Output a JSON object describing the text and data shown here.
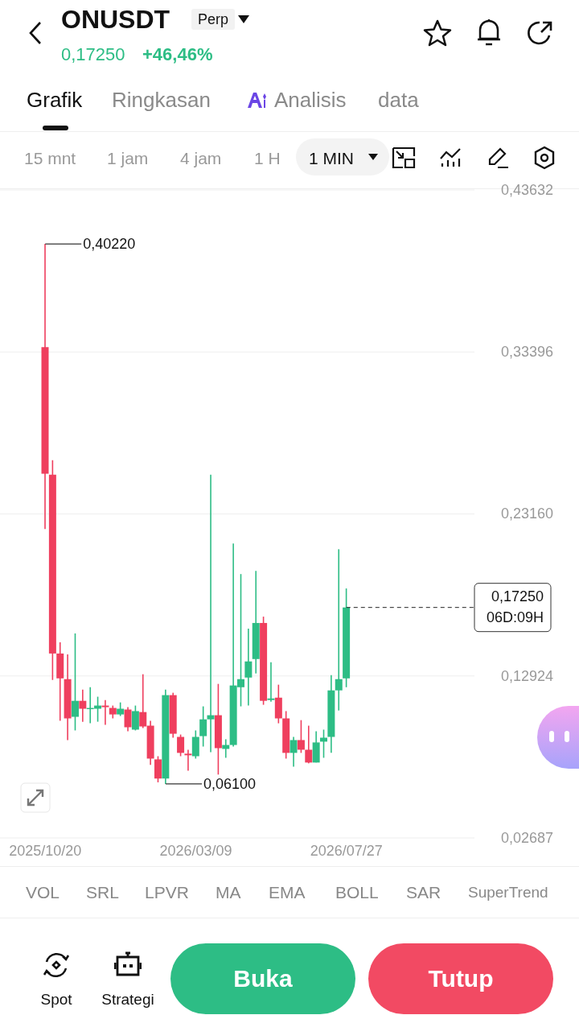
{
  "chart_data": {
    "type": "candlestick",
    "title": "ONUSDT",
    "x": [
      "2025-10-20",
      "2025-10-27",
      "2025-11-03",
      "2025-11-10",
      "2025-11-17",
      "2025-11-24",
      "2025-12-01",
      "2025-12-08",
      "2025-12-15",
      "2025-12-22",
      "2025-12-29",
      "2026-01-05",
      "2026-01-12",
      "2026-01-19",
      "2026-01-26",
      "2026-02-02",
      "2026-02-09",
      "2026-02-16",
      "2026-02-23",
      "2026-03-02",
      "2026-03-09",
      "2026-03-16",
      "2026-03-23",
      "2026-03-30",
      "2026-04-06",
      "2026-04-13",
      "2026-04-20",
      "2026-04-27",
      "2026-05-04",
      "2026-05-11",
      "2026-05-18",
      "2026-05-25",
      "2026-06-01",
      "2026-06-08",
      "2026-06-15",
      "2026-06-22",
      "2026-06-29",
      "2026-07-06",
      "2026-07-13",
      "2026-07-20",
      "2026-07-27"
    ],
    "ohlc": [
      [
        0.337,
        0.4022,
        0.222,
        0.257
      ],
      [
        0.2564,
        0.2656,
        0.1267,
        0.1434
      ],
      [
        0.1434,
        0.1505,
        0.1009,
        0.1277
      ],
      [
        0.1272,
        0.1429,
        0.0887,
        0.1024
      ],
      [
        0.1034,
        0.1561,
        0.0948,
        0.1135
      ],
      [
        0.1135,
        0.1206,
        0.1003,
        0.1085
      ],
      [
        0.1085,
        0.1221,
        0.0993,
        0.109
      ],
      [
        0.1085,
        0.1161,
        0.1003,
        0.1105
      ],
      [
        0.1105,
        0.114,
        0.0983,
        0.1095
      ],
      [
        0.109,
        0.1105,
        0.1024,
        0.1049
      ],
      [
        0.1049,
        0.1125,
        0.1039,
        0.1085
      ],
      [
        0.108,
        0.1095,
        0.0943,
        0.0968
      ],
      [
        0.0953,
        0.1105,
        0.0948,
        0.107
      ],
      [
        0.1064,
        0.1303,
        0.0963,
        0.0973
      ],
      [
        0.0978,
        0.1009,
        0.073,
        0.077
      ],
      [
        0.0765,
        0.0785,
        0.062,
        0.0644
      ],
      [
        0.0644,
        0.1206,
        0.061,
        0.1171
      ],
      [
        0.1171,
        0.1186,
        0.0902,
        0.0927
      ],
      [
        0.0907,
        0.0922,
        0.0785,
        0.0806
      ],
      [
        0.0801,
        0.0826,
        0.0694,
        0.0791
      ],
      [
        0.0785,
        0.0948,
        0.077,
        0.0907
      ],
      [
        0.0912,
        0.11,
        0.0846,
        0.1018
      ],
      [
        0.1018,
        0.2564,
        0.0811,
        0.1044
      ],
      [
        0.1044,
        0.1242,
        0.0669,
        0.0836
      ],
      [
        0.0831,
        0.0892,
        0.0775,
        0.0856
      ],
      [
        0.0856,
        0.2129,
        0.0846,
        0.1232
      ],
      [
        0.1221,
        0.1936,
        0.11,
        0.1272
      ],
      [
        0.1282,
        0.1591,
        0.1105,
        0.1384
      ],
      [
        0.1399,
        0.1956,
        0.1308,
        0.1627
      ],
      [
        0.1627,
        0.1667,
        0.111,
        0.1135
      ],
      [
        0.114,
        0.1379,
        0.113,
        0.115
      ],
      [
        0.1155,
        0.1237,
        0.0993,
        0.1024
      ],
      [
        0.1024,
        0.107,
        0.077,
        0.0806
      ],
      [
        0.0806,
        0.0907,
        0.0719,
        0.0887
      ],
      [
        0.0887,
        0.1013,
        0.0806,
        0.0826
      ],
      [
        0.0826,
        0.0978,
        0.074,
        0.0745
      ],
      [
        0.0745,
        0.0943,
        0.0745,
        0.0872
      ],
      [
        0.0877,
        0.0953,
        0.0775,
        0.0902
      ],
      [
        0.0907,
        0.1297,
        0.0806,
        0.1201
      ],
      [
        0.1201,
        0.2093,
        0.1074,
        0.1272
      ],
      [
        0.1277,
        0.1845,
        0.1221,
        0.1725
      ]
    ],
    "colors": [
      "#ef3f5e",
      "#ef3f5e",
      "#ef3f5e",
      "#ef3f5e",
      "#2dbd85",
      "#ef3f5e",
      "#2dbd85",
      "#2dbd85",
      "#ef3f5e",
      "#ef3f5e",
      "#2dbd85",
      "#ef3f5e",
      "#2dbd85",
      "#ef3f5e",
      "#ef3f5e",
      "#ef3f5e",
      "#2dbd85",
      "#ef3f5e",
      "#ef3f5e",
      "#ef3f5e",
      "#2dbd85",
      "#2dbd85",
      "#2dbd85",
      "#ef3f5e",
      "#2dbd85",
      "#2dbd85",
      "#2dbd85",
      "#2dbd85",
      "#2dbd85",
      "#ef3f5e",
      "#2dbd85",
      "#ef3f5e",
      "#ef3f5e",
      "#2dbd85",
      "#ef3f5e",
      "#ef3f5e",
      "#2dbd85",
      "#2dbd85",
      "#2dbd85",
      "#2dbd85",
      "#2dbd85"
    ],
    "xlim": [
      "2025-09-08",
      "2026-11-23"
    ],
    "xticks": [
      {
        "value": "2025-10-20",
        "label": "2025/10/20"
      },
      {
        "value": "2026-03-09",
        "label": "2026/03/09"
      },
      {
        "value": "2026-07-27",
        "label": "2026/07/27"
      }
    ],
    "ylim": [
      0.02687,
      0.43632
    ],
    "yticks": [
      {
        "value": 0.02687,
        "label": "0,02687"
      },
      {
        "value": 0.12924,
        "label": "0,12924"
      },
      {
        "value": 0.2316,
        "label": "0,23160"
      },
      {
        "value": 0.33396,
        "label": "0,33396"
      },
      {
        "value": 0.43632,
        "label": "0,43632"
      }
    ],
    "grid": "y",
    "ref_lines": [
      {
        "axis": "y",
        "value": 0.1725,
        "label": "0,17250\n06D:09H",
        "line_style": "dashed",
        "color": "#222222"
      }
    ],
    "annotations": [
      "Perp",
      "0,17250",
      "+46,46%",
      "Grafik",
      "Ringkasan",
      "Analisis",
      "data",
      "15 mnt",
      "1 jam",
      "4 jam",
      "1 H",
      "1 MIN",
      "VOL",
      "SRL",
      "LPVR",
      "MA",
      "EMA",
      "BOLL",
      "SAR",
      "SuperTrend",
      "Spot",
      "Strategi",
      "Buka",
      "Tutup",
      {
        "text": "0,40220",
        "x": "2025-10-20",
        "y": 0.4022
      },
      {
        "text": "0,06100",
        "x": "2026-02-09",
        "y": 0.061
      }
    ]
  }
}
